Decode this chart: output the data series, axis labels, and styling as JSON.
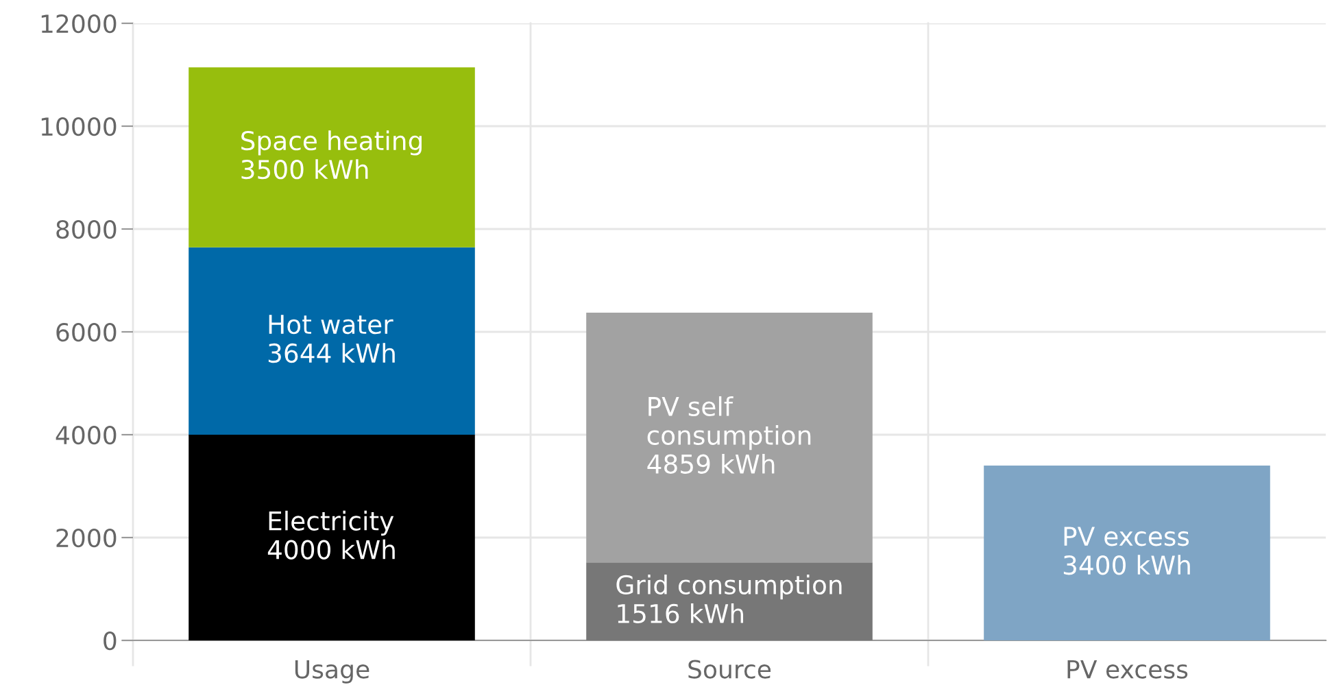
{
  "chart_data": {
    "type": "bar",
    "stacked": true,
    "categories": [
      "Usage",
      "Source",
      "PV excess"
    ],
    "series": [
      {
        "name": "Electricity",
        "color": "#000000",
        "values": [
          4000,
          null,
          null
        ],
        "value_labels": [
          "4000 kWh",
          null,
          null
        ]
      },
      {
        "name": "Hot water",
        "color": "#0069a8",
        "values": [
          3644,
          null,
          null
        ],
        "value_labels": [
          "3644 kWh",
          null,
          null
        ]
      },
      {
        "name": "Space heating",
        "color": "#97be0d",
        "values": [
          3500,
          null,
          null
        ],
        "value_labels": [
          "3500 kWh",
          null,
          null
        ]
      },
      {
        "name": "Grid consumption",
        "color": "#777777",
        "values": [
          null,
          1516,
          null
        ],
        "value_labels": [
          null,
          "1516 kWh",
          null
        ]
      },
      {
        "name": "PV self\nconsumption",
        "color": "#a2a2a2",
        "values": [
          null,
          4859,
          null
        ],
        "value_labels": [
          null,
          "4859 kWh",
          null
        ]
      },
      {
        "name": "PV excess",
        "color": "#7fa5c5",
        "values": [
          null,
          null,
          3400
        ],
        "value_labels": [
          null,
          null,
          "3400 kWh"
        ]
      }
    ],
    "ylim": [
      0,
      12000
    ],
    "yticks": [
      0,
      2000,
      4000,
      6000,
      8000,
      10000,
      12000
    ],
    "grid": true,
    "legend": false
  }
}
